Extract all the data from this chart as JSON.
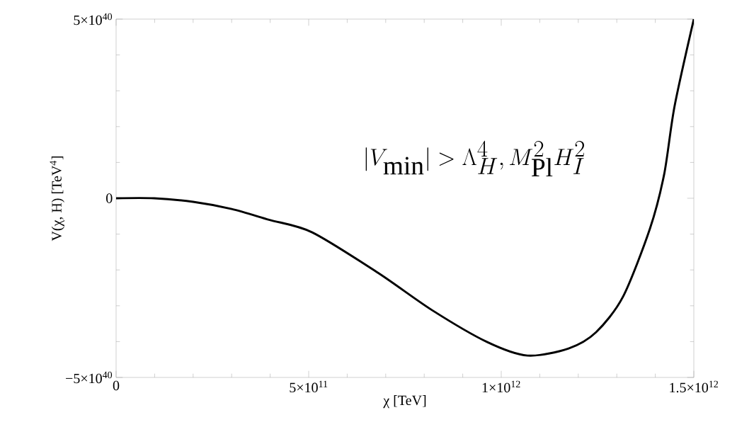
{
  "chart_data": {
    "type": "line",
    "xlabel": "χ [TeV]",
    "ylabel": "V(χ, H) [TeV$^{4}$]",
    "annotations": [
      "|V_{\\min}| > \\Lambda_H^4, M_{\\mathrm{Pl}}^2 H_I^2"
    ],
    "x": [
      0,
      99000000000.0,
      200000000000.0,
      300000000000.0,
      397000000000.0,
      509000000000.0,
      680000000000.0,
      820000000000.0,
      963000000000.0,
      1068000000000.0,
      1175000000000.0,
      1246000000000.0,
      1316000000000.0,
      1386000000000.0,
      1423000000000.0,
      1450000000000.0,
      1500000000000.0
    ],
    "series": [
      {
        "color": "#000000",
        "values": [
          0,
          0,
          -1e+39,
          -3e+39,
          -6e+39,
          -9.5e+39,
          -2.08e+40,
          -3.12e+40,
          -4.01e+40,
          -4.39e+40,
          -4.19e+40,
          -3.74e+40,
          -2.75e+40,
          -8.5e+39,
          6.7e+39,
          2.57e+40,
          5e+40
        ]
      }
    ],
    "xlim": [
      0,
      1500000000000.0
    ],
    "ylim": [
      -5e+40,
      5e+40
    ],
    "xticks": [
      0,
      {
        "value": 500000000000.0,
        "label": "5×10$^{11}$"
      },
      {
        "value": 1000000000000.0,
        "label": "1×10$^{12}$"
      },
      {
        "value": 1500000000000.0,
        "label": "1.5×10$^{12}$"
      }
    ],
    "yticks": [
      {
        "value": -5e+40,
        "label": "−5×10$^{40}$"
      },
      0,
      {
        "value": 5e+40,
        "label": "5×10$^{40}$"
      }
    ],
    "grid": false,
    "marker": "none",
    "line_style": "solid"
  }
}
